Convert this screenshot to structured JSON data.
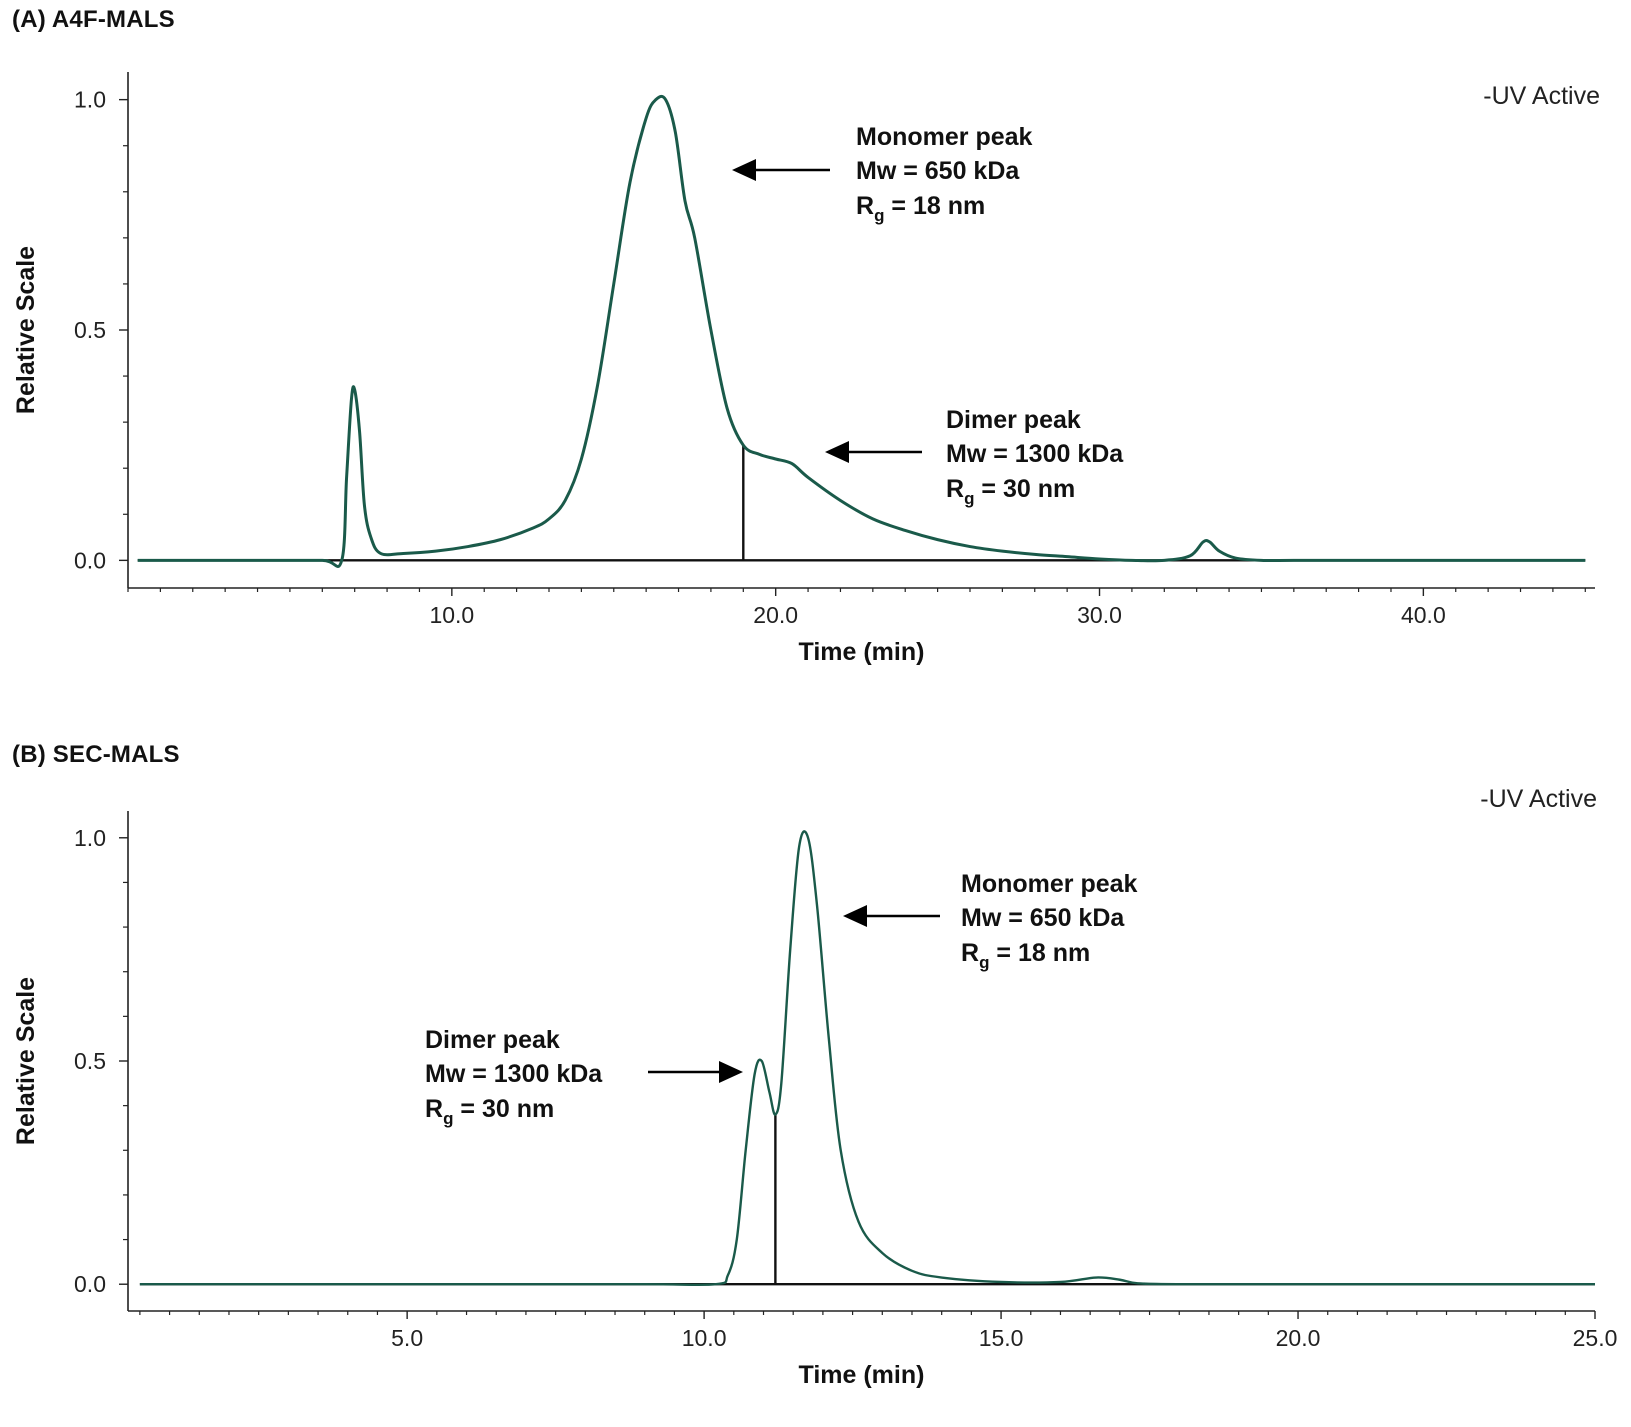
{
  "panels": {
    "a": {
      "label": "(A) A4F-MALS"
    },
    "b": {
      "label": "(B) SEC-MALS"
    }
  },
  "colors": {
    "trace": "#1a5a4a",
    "axis": "#222222",
    "baseline": "#111111"
  },
  "chart_data": [
    {
      "type": "line",
      "title": "(A) A4F-MALS",
      "xlabel": "Time (min)",
      "ylabel": "Relative Scale",
      "xlim": [
        0,
        45.3
      ],
      "ylim": [
        -0.06,
        1.06
      ],
      "xticks": [
        10.0,
        20.0,
        30.0,
        40.0
      ],
      "xtick_labels": [
        "10.0",
        "20.0",
        "30.0",
        "40.0"
      ],
      "yticks": [
        0.0,
        0.5,
        1.0
      ],
      "ytick_labels": [
        "0.0",
        "0.5",
        "1.0"
      ],
      "legend": {
        "text": "-UV Active",
        "position": "top-right"
      },
      "series": [
        {
          "name": "UV Active",
          "x": [
            0.3,
            2.0,
            4.0,
            6.0,
            6.6,
            6.75,
            6.9,
            7.0,
            7.15,
            7.3,
            7.5,
            7.8,
            8.5,
            9.5,
            10.5,
            11.5,
            12.5,
            13.0,
            13.5,
            14.0,
            14.5,
            15.0,
            15.5,
            16.0,
            16.3,
            16.6,
            16.9,
            17.2,
            17.5,
            18.0,
            18.5,
            19.0,
            19.5,
            20.0,
            20.5,
            21.0,
            22.0,
            23.0,
            24.0,
            25.0,
            26.0,
            27.0,
            28.0,
            29.0,
            30.0,
            31.0,
            32.0,
            32.8,
            33.2,
            33.4,
            33.7,
            34.2,
            35.0,
            36.0,
            38.0,
            42.0,
            45.0
          ],
          "y": [
            0.0,
            0.0,
            0.0,
            0.0,
            0.0,
            0.18,
            0.35,
            0.37,
            0.28,
            0.12,
            0.05,
            0.015,
            0.015,
            0.02,
            0.03,
            0.045,
            0.07,
            0.09,
            0.13,
            0.22,
            0.38,
            0.6,
            0.82,
            0.96,
            1.0,
            1.0,
            0.93,
            0.78,
            0.7,
            0.5,
            0.33,
            0.25,
            0.23,
            0.22,
            0.21,
            0.18,
            0.13,
            0.09,
            0.065,
            0.045,
            0.03,
            0.02,
            0.013,
            0.008,
            0.003,
            0.0,
            0.0,
            0.01,
            0.04,
            0.04,
            0.02,
            0.005,
            0.0,
            0.0,
            0.0,
            0.0,
            0.0
          ]
        }
      ],
      "divider_x": 19.0,
      "annotations": [
        {
          "peak": "Monomer peak",
          "mw": "Mw = 650 kDa",
          "rg": "R",
          "rg_sub": "g",
          "rg_val": " = 18 nm"
        },
        {
          "peak": "Dimer peak",
          "mw": "Mw = 1300 kDa",
          "rg": "R",
          "rg_sub": "g",
          "rg_val": " = 30 nm"
        }
      ]
    },
    {
      "type": "line",
      "title": "(B) SEC-MALS",
      "xlabel": "Time (min)",
      "ylabel": "Relative Scale",
      "xlim": [
        0.3,
        25.0
      ],
      "ylim": [
        -0.06,
        1.06
      ],
      "xticks": [
        5.0,
        10.0,
        15.0,
        20.0,
        25.0
      ],
      "xtick_labels": [
        "5.0",
        "10.0",
        "15.0",
        "20.0",
        "25.0"
      ],
      "yticks": [
        0.0,
        0.5,
        1.0
      ],
      "ytick_labels": [
        "0.0",
        "0.5",
        "1.0"
      ],
      "legend": {
        "text": "-UV Active",
        "position": "top-right"
      },
      "series": [
        {
          "name": "UV Active",
          "x": [
            0.5,
            3.0,
            6.0,
            9.0,
            10.2,
            10.4,
            10.55,
            10.7,
            10.85,
            10.97,
            11.1,
            11.2,
            11.3,
            11.45,
            11.6,
            11.75,
            11.9,
            12.1,
            12.3,
            12.6,
            13.0,
            13.5,
            14.0,
            15.0,
            16.0,
            16.6,
            17.0,
            17.3,
            18.0,
            20.0,
            23.0,
            25.0
          ],
          "y": [
            0.0,
            0.0,
            0.0,
            0.0,
            0.0,
            0.02,
            0.1,
            0.3,
            0.47,
            0.5,
            0.43,
            0.38,
            0.45,
            0.75,
            0.98,
            1.0,
            0.85,
            0.55,
            0.3,
            0.14,
            0.07,
            0.03,
            0.015,
            0.005,
            0.005,
            0.015,
            0.01,
            0.002,
            0.0,
            0.0,
            0.0,
            0.0
          ]
        }
      ],
      "divider_x": 11.2,
      "annotations": [
        {
          "peak": "Monomer peak",
          "mw": "Mw = 650 kDa",
          "rg": "R",
          "rg_sub": "g",
          "rg_val": " = 18 nm"
        },
        {
          "peak": "Dimer peak",
          "mw": "Mw = 1300 kDa",
          "rg": "R",
          "rg_sub": "g",
          "rg_val": " = 30 nm"
        }
      ]
    }
  ]
}
